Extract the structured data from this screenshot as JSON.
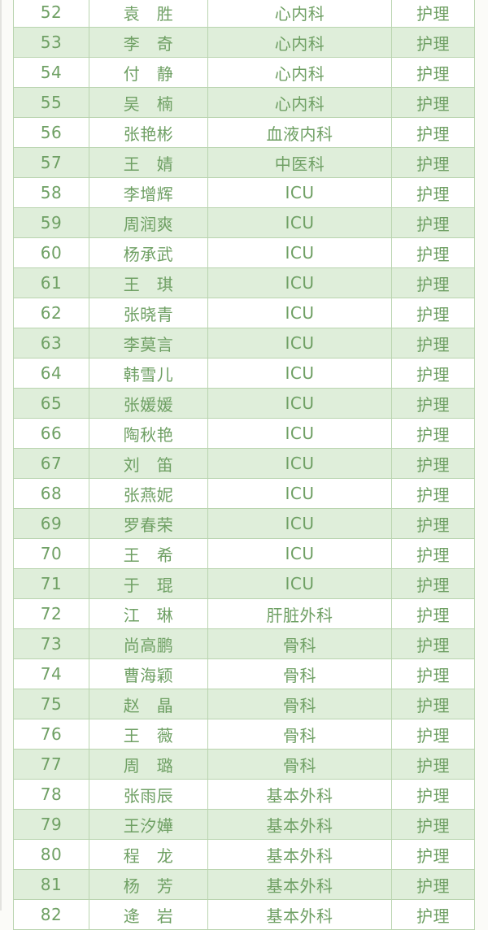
{
  "page": {
    "background": "#fbfbf8",
    "accent_text_color": "#6fa064",
    "border_color": "#b9d4af",
    "row_bg": "#ffffff",
    "row_alt_bg": "#dfeeda"
  },
  "table": {
    "rows": [
      {
        "no": "52",
        "name": "袁　胜",
        "dept": "心内科",
        "role": "护理"
      },
      {
        "no": "53",
        "name": "李　奇",
        "dept": "心内科",
        "role": "护理"
      },
      {
        "no": "54",
        "name": "付　静",
        "dept": "心内科",
        "role": "护理"
      },
      {
        "no": "55",
        "name": "吴　楠",
        "dept": "心内科",
        "role": "护理"
      },
      {
        "no": "56",
        "name": "张艳彬",
        "dept": "血液内科",
        "role": "护理"
      },
      {
        "no": "57",
        "name": "王　婧",
        "dept": "中医科",
        "role": "护理"
      },
      {
        "no": "58",
        "name": "李增辉",
        "dept": "ICU",
        "role": "护理"
      },
      {
        "no": "59",
        "name": "周润爽",
        "dept": "ICU",
        "role": "护理"
      },
      {
        "no": "60",
        "name": "杨承武",
        "dept": "ICU",
        "role": "护理"
      },
      {
        "no": "61",
        "name": "王　琪",
        "dept": "ICU",
        "role": "护理"
      },
      {
        "no": "62",
        "name": "张晓青",
        "dept": "ICU",
        "role": "护理"
      },
      {
        "no": "63",
        "name": "李莫言",
        "dept": "ICU",
        "role": "护理"
      },
      {
        "no": "64",
        "name": "韩雪儿",
        "dept": "ICU",
        "role": "护理"
      },
      {
        "no": "65",
        "name": "张媛媛",
        "dept": "ICU",
        "role": "护理"
      },
      {
        "no": "66",
        "name": "陶秋艳",
        "dept": "ICU",
        "role": "护理"
      },
      {
        "no": "67",
        "name": "刘　笛",
        "dept": "ICU",
        "role": "护理"
      },
      {
        "no": "68",
        "name": "张燕妮",
        "dept": "ICU",
        "role": "护理"
      },
      {
        "no": "69",
        "name": "罗春荣",
        "dept": "ICU",
        "role": "护理"
      },
      {
        "no": "70",
        "name": "王　希",
        "dept": "ICU",
        "role": "护理"
      },
      {
        "no": "71",
        "name": "于　琨",
        "dept": "ICU",
        "role": "护理"
      },
      {
        "no": "72",
        "name": "江　琳",
        "dept": "肝脏外科",
        "role": "护理"
      },
      {
        "no": "73",
        "name": "尚高鹏",
        "dept": "骨科",
        "role": "护理"
      },
      {
        "no": "74",
        "name": "曹海颖",
        "dept": "骨科",
        "role": "护理"
      },
      {
        "no": "75",
        "name": "赵　晶",
        "dept": "骨科",
        "role": "护理"
      },
      {
        "no": "76",
        "name": "王　薇",
        "dept": "骨科",
        "role": "护理"
      },
      {
        "no": "77",
        "name": "周　璐",
        "dept": "骨科",
        "role": "护理"
      },
      {
        "no": "78",
        "name": "张雨辰",
        "dept": "基本外科",
        "role": "护理"
      },
      {
        "no": "79",
        "name": "王汐嬅",
        "dept": "基本外科",
        "role": "护理"
      },
      {
        "no": "80",
        "name": "程　龙",
        "dept": "基本外科",
        "role": "护理"
      },
      {
        "no": "81",
        "name": "杨　芳",
        "dept": "基本外科",
        "role": "护理"
      },
      {
        "no": "82",
        "name": "逄　岩",
        "dept": "基本外科",
        "role": "护理"
      }
    ]
  }
}
